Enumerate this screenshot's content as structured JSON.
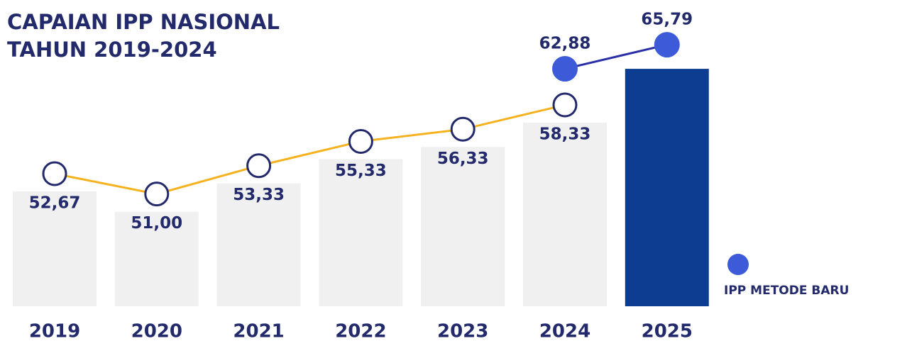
{
  "chart_data": {
    "type": "line",
    "title": [
      "CAPAIAN IPP NASIONAL",
      "TAHUN 2019-2024"
    ],
    "categories": [
      "2019",
      "2020",
      "2021",
      "2022",
      "2023",
      "2024",
      "2025"
    ],
    "series": [
      {
        "color": "#f5b21e",
        "values": [
          52.67,
          51.0,
          53.33,
          55.33,
          56.33,
          58.33,
          null
        ],
        "value_labels": [
          "52,67",
          "51,00",
          "53,33",
          "55,33",
          "56,33",
          "58,33",
          null
        ]
      },
      {
        "name": "IPP METODE BARU",
        "color": "#3d5bd9",
        "values": [
          null,
          null,
          null,
          null,
          null,
          62.88,
          65.79
        ],
        "value_labels": [
          null,
          null,
          null,
          null,
          null,
          "62,88",
          "65,79"
        ]
      }
    ]
  }
}
